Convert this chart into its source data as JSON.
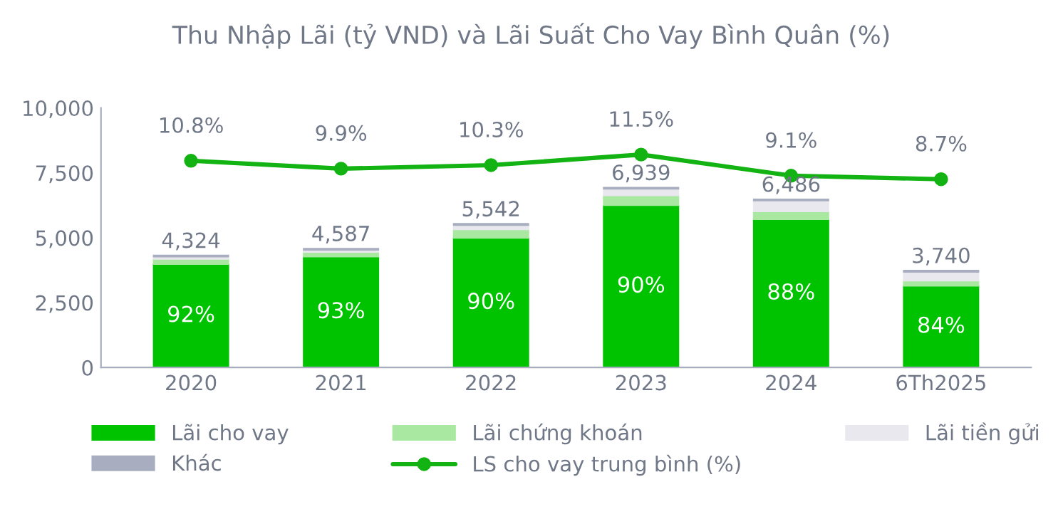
{
  "chart_data": {
    "type": "bar",
    "title": "Thu Nhập Lãi (tỷ VND) và Lãi Suất Cho Vay Bình Quân (%)",
    "categories": [
      "2020",
      "2021",
      "2022",
      "2023",
      "2024",
      "6Th2025"
    ],
    "stacked": true,
    "series": [
      {
        "name": "Lãi cho vay",
        "color": "#00c300",
        "values": [
          3978,
          4266,
          4988,
          6245,
          5708,
          3142
        ]
      },
      {
        "name": "Lãi chứng khoán",
        "color": "#a8e8a0",
        "values": [
          200,
          180,
          330,
          380,
          300,
          200
        ]
      },
      {
        "name": "Lãi tiền gửi",
        "color": "#e8e8ee",
        "values": [
          86,
          81,
          164,
          254,
          418,
          338
        ]
      },
      {
        "name": "Khác",
        "color": "#a8aec0",
        "values": [
          60,
          60,
          60,
          60,
          60,
          60
        ]
      },
      {
        "name": "LS cho vay trung bình (%)",
        "type": "line",
        "axis": "y2",
        "color": "#12b312",
        "marker": "circle",
        "values": [
          10.8,
          9.9,
          10.3,
          11.5,
          9.1,
          8.7
        ],
        "value_labels": [
          "10.8%",
          "9.9%",
          "10.3%",
          "11.5%",
          "9.1%",
          "8.7%"
        ]
      }
    ],
    "totals": [
      "4,324",
      "4,587",
      "5,542",
      "6,939",
      "6,486",
      "3,740"
    ],
    "ylim": [
      0,
      10000
    ],
    "yticks": [
      {
        "value": 0,
        "label": "0"
      },
      {
        "value": 2500,
        "label": "2,500"
      },
      {
        "value": 5000,
        "label": "5,000"
      },
      {
        "value": 7500,
        "label": "7,500"
      },
      {
        "value": 10000,
        "label": "10,000"
      }
    ],
    "annotations": [
      "92%",
      "93%",
      "90%",
      "90%",
      "88%",
      "84%"
    ],
    "y2lim": [
      -12.7,
      16.8
    ],
    "grid": false,
    "legend": "bottom"
  }
}
